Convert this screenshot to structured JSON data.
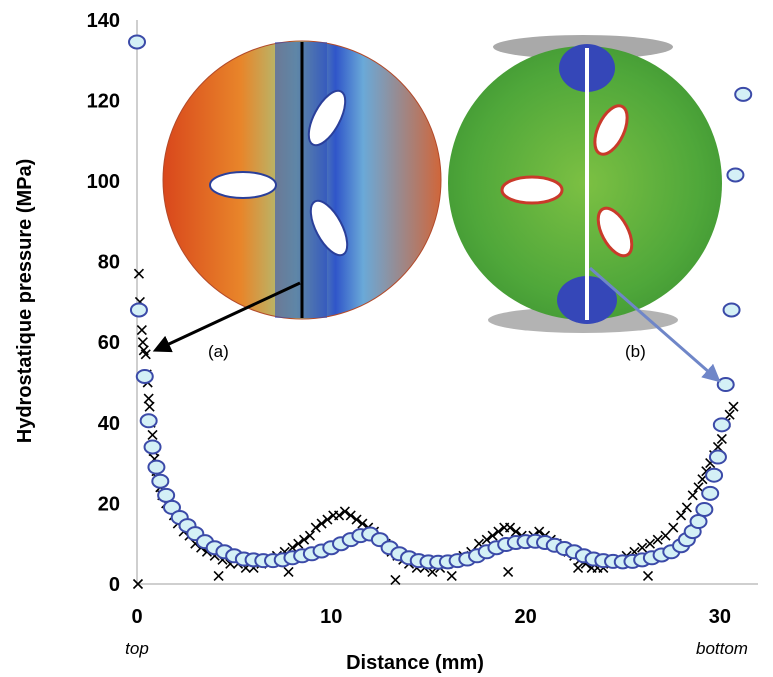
{
  "chart_data": {
    "type": "scatter",
    "title": "",
    "xlabel": "Distance (mm)",
    "ylabel": "Hydrostatique pressure (MPa)",
    "xlim": [
      0,
      31
    ],
    "ylim": [
      0,
      140
    ],
    "xticks": [
      "0",
      "10",
      "20",
      "30"
    ],
    "yticks": [
      "0",
      "20",
      "40",
      "60",
      "80",
      "100",
      "120",
      "140"
    ],
    "x_start_label": "top",
    "x_end_label": "bottom",
    "grid": false,
    "series": [
      {
        "marker": "circle",
        "color": "#3b4aa8",
        "fill": "#d4f0f6",
        "x": [
          0,
          0.1,
          0.4,
          0.6,
          0.8,
          1,
          1.2,
          1.5,
          1.8,
          2.2,
          2.6,
          3,
          3.5,
          4,
          4.5,
          5,
          5.5,
          6,
          6.5,
          7,
          7.5,
          8,
          8.5,
          9,
          9.5,
          10,
          10.5,
          11,
          11.5,
          12,
          12.5,
          13,
          13.5,
          14,
          14.5,
          15,
          15.5,
          16,
          16.5,
          17,
          17.5,
          18,
          18.5,
          19,
          19.5,
          20,
          20.5,
          21,
          21.5,
          22,
          22.5,
          23,
          23.5,
          24,
          24.5,
          25,
          25.5,
          26,
          26.5,
          27,
          27.5,
          28,
          28.3,
          28.6,
          28.9,
          29.2,
          29.5,
          29.7,
          29.9,
          30.1,
          30.3,
          30.6,
          30.8,
          31.2
        ],
        "y": [
          134.5,
          68,
          51.5,
          40.5,
          34,
          29,
          25.5,
          22,
          19,
          16.5,
          14.5,
          12.5,
          10.5,
          9,
          8,
          7,
          6.2,
          6,
          5.8,
          5.8,
          6,
          6.5,
          7,
          7.5,
          8.2,
          9,
          10,
          11,
          12,
          12.4,
          11,
          9,
          7.5,
          6.5,
          5.8,
          5.5,
          5.4,
          5.5,
          5.8,
          6.2,
          7,
          8,
          9,
          9.8,
          10.3,
          10.5,
          10.6,
          10.3,
          9.6,
          8.8,
          8,
          7,
          6.2,
          5.8,
          5.6,
          5.5,
          5.6,
          6,
          6.5,
          7.2,
          8,
          9.5,
          11,
          13,
          15.5,
          18.5,
          22.5,
          27,
          31.5,
          39.5,
          49.5,
          68,
          101.5,
          121.5
        ]
      },
      {
        "marker": "x",
        "color": "#000000",
        "x": [
          0.1,
          0.15,
          0.25,
          0.3,
          0.35,
          0.45,
          0.5,
          0.55,
          0.6,
          0.65,
          0.7,
          0.8,
          0.85,
          0.9,
          1,
          1.1,
          1.2,
          1.3,
          1.5,
          1.7,
          1.9,
          2.1,
          2.4,
          2.7,
          3,
          3.3,
          3.6,
          4,
          4.4,
          4.8,
          5.2,
          5.6,
          6,
          6.4,
          6.8,
          7.2,
          7.6,
          8,
          8.3,
          8.6,
          8.9,
          9.2,
          9.5,
          9.8,
          10.1,
          10.4,
          10.7,
          11,
          11.3,
          11.6,
          11.9,
          12.2,
          12.5,
          12.8,
          13.1,
          13.4,
          13.7,
          14,
          14.4,
          14.8,
          15.2,
          15.6,
          16,
          16.4,
          16.8,
          17.2,
          17.6,
          18,
          18.3,
          18.6,
          18.9,
          19.2,
          19.5,
          19.8,
          20.1,
          20.4,
          20.7,
          21,
          21.3,
          21.6,
          21.9,
          22.2,
          22.5,
          22.8,
          23.1,
          23.4,
          23.7,
          24,
          24.4,
          24.8,
          25.2,
          25.6,
          26,
          26.4,
          26.8,
          27.2,
          27.6,
          28,
          28.3,
          28.6,
          28.9,
          29.1,
          29.3,
          29.5,
          29.7,
          29.9,
          30.1,
          30.3,
          30.5,
          30.7,
          0.05,
          4.2,
          7.8,
          13.3,
          16.2,
          19.1,
          22.7,
          26.3
        ],
        "y": [
          77,
          70,
          63,
          60,
          58,
          57,
          52,
          50,
          46,
          44,
          40,
          37,
          33,
          31,
          28,
          26,
          24,
          22,
          20,
          19,
          17,
          15,
          13,
          12,
          10,
          9,
          8,
          7,
          6,
          5,
          5,
          4,
          4,
          5,
          6,
          7,
          8,
          9,
          10,
          11,
          12,
          14,
          15,
          16,
          17,
          17,
          18,
          17,
          16,
          15,
          14,
          13,
          11,
          10,
          8,
          7,
          6,
          5,
          4,
          4,
          3,
          4,
          5,
          6,
          7,
          8,
          10,
          11,
          12,
          13,
          14,
          14,
          13,
          12,
          11,
          12,
          13,
          12,
          11,
          10,
          9,
          8,
          7,
          6,
          5,
          4,
          4,
          4,
          5,
          6,
          7,
          8,
          9,
          10,
          11,
          12,
          14,
          17,
          19,
          22,
          24,
          26,
          28,
          30,
          32,
          34,
          36,
          40,
          42,
          44,
          0,
          2,
          3,
          1,
          2,
          3,
          4,
          2
        ]
      }
    ],
    "annotations": [
      "(a)",
      "(b)"
    ]
  },
  "colors": {
    "circle_edge": "#3b4aa8",
    "circle_fill": "#d4f0f6",
    "cross": "#000000"
  },
  "insets": [
    {
      "name": "inset-a",
      "label": "(a)",
      "colormap": "blue-cyan-yellow-red"
    },
    {
      "name": "inset-b",
      "label": "(b)",
      "colormap": "green-yellow-red-blue"
    }
  ]
}
